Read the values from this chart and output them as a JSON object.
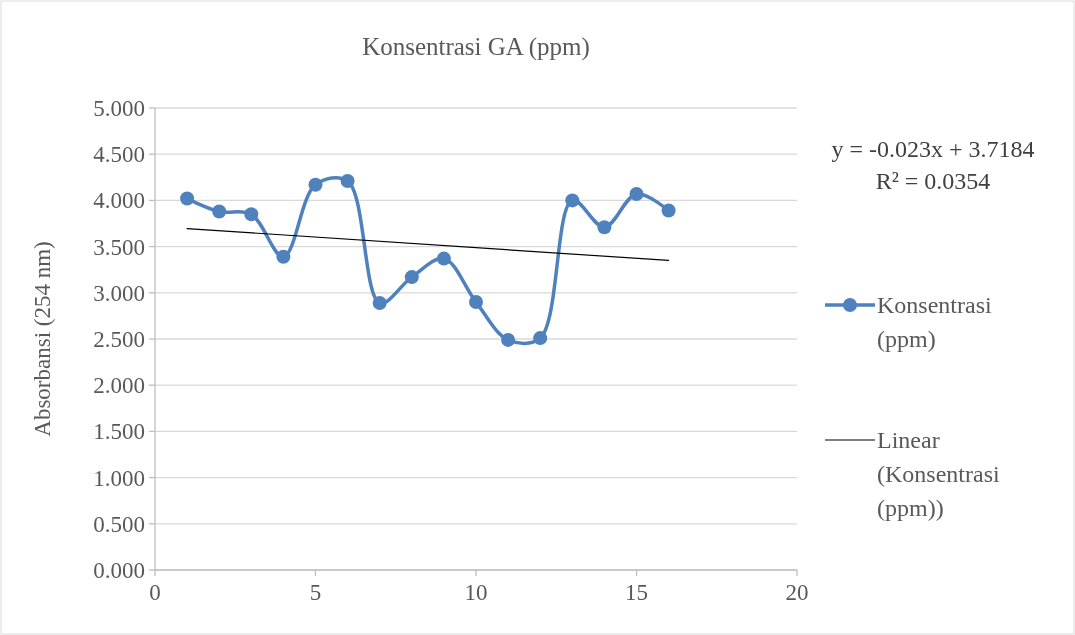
{
  "chart_data": {
    "type": "line",
    "title": "Konsentrasi GA (ppm)",
    "ylabel": "Absorbansi (254 nm)",
    "x": [
      1,
      2,
      3,
      4,
      5,
      6,
      7,
      8,
      9,
      10,
      11,
      12,
      13,
      14,
      15,
      16
    ],
    "series": [
      {
        "name": "Konsentrasi (ppm)",
        "color": "#4f81bd",
        "values": [
          4.02,
          3.88,
          3.85,
          3.39,
          4.17,
          4.21,
          2.89,
          3.17,
          3.37,
          2.9,
          2.49,
          2.51,
          4.0,
          3.71,
          4.07,
          3.89
        ],
        "marker": "circle"
      },
      {
        "name": "Linear (Konsentrasi (ppm))",
        "type": "line",
        "color": "#000000",
        "x": [
          1,
          16
        ],
        "values": [
          3.695,
          3.35
        ],
        "marker": "none"
      }
    ],
    "xlim": [
      0,
      20
    ],
    "xticks": [
      0,
      5,
      10,
      15,
      20
    ],
    "ylim": [
      0,
      5
    ],
    "yticks": [
      {
        "value": 0,
        "label": "0.000"
      },
      {
        "value": 0.5,
        "label": "0.500"
      },
      {
        "value": 1,
        "label": "1.000"
      },
      {
        "value": 1.5,
        "label": "1.500"
      },
      {
        "value": 2,
        "label": "2.000"
      },
      {
        "value": 2.5,
        "label": "2.500"
      },
      {
        "value": 3,
        "label": "3.000"
      },
      {
        "value": 3.5,
        "label": "3.500"
      },
      {
        "value": 4,
        "label": "4.000"
      },
      {
        "value": 4.5,
        "label": "4.500"
      },
      {
        "value": 5,
        "label": "5.000"
      }
    ],
    "annotations": [
      "y = -0.023x + 3.7184",
      "R² = 0.0354"
    ],
    "grid": "y",
    "legend": "right"
  }
}
